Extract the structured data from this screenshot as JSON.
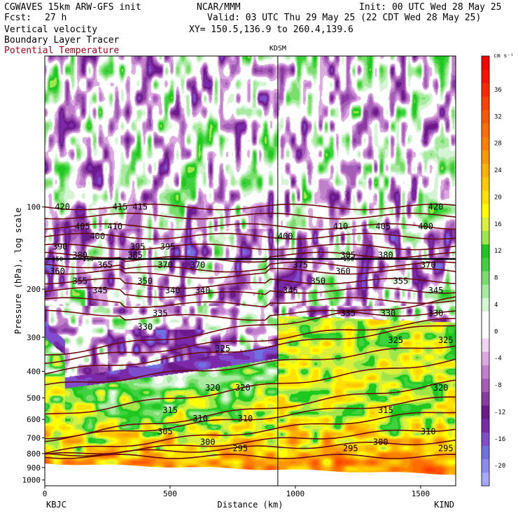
{
  "header": {
    "model": "CGWAVES 15km ARW-GFS init",
    "fcst_label": "Fcst:",
    "fcst_value": "27 h",
    "org": "NCAR/MMM",
    "init": "Init: 00 UTC Wed 28 May 25",
    "valid": "Valid: 03 UTC Thu 29 May 25 (22 CDT Wed 28 May 25)",
    "xy": "XY= 150.5,136.9 to 260.4,139.6",
    "fields": [
      "Vertical velocity",
      "Boundary Layer Tracer",
      "Potential Temperature"
    ]
  },
  "colors": {
    "theta_contour": "#6b0a0a",
    "field_label_theta": "#a0001a",
    "ground": "#ffffff"
  },
  "chart_data": {
    "type": "heatmap",
    "title": "",
    "xlabel": "Distance (km)",
    "ylabel": "Pressure (hPa), log scale",
    "x_ticks": [
      0,
      500,
      1000,
      1500
    ],
    "xlim": [
      0,
      1640
    ],
    "y_scale": "log",
    "y_ticks": [
      100,
      200,
      300,
      400,
      500,
      600,
      700,
      800,
      900,
      1000
    ],
    "ylim": [
      1050,
      28
    ],
    "left_station": "KBJC",
    "right_station": "KIND",
    "marker_station": {
      "label": "KDSM",
      "x": 930
    },
    "colorbar": {
      "unit": "cm s⁻¹",
      "levels": [
        -22,
        -20,
        -18,
        -16,
        -14,
        -12,
        -10,
        -8,
        -6,
        -4,
        -2,
        0,
        2,
        4,
        6,
        8,
        10,
        12,
        14,
        16,
        18,
        20,
        22,
        24,
        26,
        28,
        30,
        32,
        34,
        36,
        38,
        40
      ],
      "labels": [
        -20,
        -16,
        -12,
        -8,
        -4,
        0,
        4,
        8,
        12,
        16,
        20,
        24,
        28,
        32,
        36
      ],
      "colors": [
        "#a8a8ff",
        "#8a8af0",
        "#7070e0",
        "#7e4ccc",
        "#7a2aa8",
        "#6a1a8a",
        "#8a3aa0",
        "#a45cb8",
        "#c080cc",
        "#dca8e0",
        "#f0d4f0",
        "#ffffff",
        "#ffffff",
        "#d4f4d4",
        "#a8eaa0",
        "#7ade6a",
        "#3ed23e",
        "#1ec81e",
        "#9ee64a",
        "#d8f03a",
        "#ffff00",
        "#ffe000",
        "#ffc800",
        "#ffb000",
        "#ff9800",
        "#ff8000",
        "#ff6c00",
        "#ff5800",
        "#ff4000",
        "#ff2800",
        "#ff1000",
        "#ff0000"
      ]
    },
    "theta_label_rows": [
      {
        "p": 100,
        "labels": [
          [
            "420",
            40
          ],
          [
            "415",
            270
          ],
          [
            "415",
            350
          ],
          [
            "420",
            1530
          ]
        ]
      },
      {
        "p": 118,
        "labels": [
          [
            "405",
            120
          ],
          [
            "410",
            250
          ],
          [
            "410",
            1150
          ],
          [
            "405",
            1320
          ],
          [
            "400",
            1490
          ]
        ]
      },
      {
        "p": 128,
        "labels": [
          [
            "400",
            180
          ],
          [
            "400",
            930
          ]
        ]
      },
      {
        "p": 140,
        "labels": [
          [
            "390",
            30
          ],
          [
            "395",
            340
          ],
          [
            "395",
            460
          ]
        ]
      },
      {
        "p": 150,
        "labels": [
          [
            "380",
            110
          ],
          [
            "385",
            330
          ],
          [
            "385",
            1180
          ],
          [
            "380",
            1330
          ]
        ]
      },
      {
        "p": 163,
        "labels": [
          [
            "365",
            210
          ],
          [
            "370",
            450
          ],
          [
            "370",
            580
          ],
          [
            "375",
            990
          ],
          [
            "370",
            1500
          ]
        ]
      },
      {
        "p": 172,
        "labels": [
          [
            "360",
            20
          ],
          [
            "360",
            1160
          ]
        ]
      },
      {
        "p": 187,
        "labels": [
          [
            "355",
            110
          ],
          [
            "350",
            370
          ],
          [
            "350",
            1060
          ],
          [
            "355",
            1390
          ]
        ]
      },
      {
        "p": 202,
        "labels": [
          [
            "345",
            190
          ],
          [
            "340",
            480
          ],
          [
            "340",
            600
          ],
          [
            "345",
            950
          ],
          [
            "345",
            1530
          ]
        ]
      },
      {
        "p": 245,
        "labels": [
          [
            "335",
            430
          ],
          [
            "335",
            1180
          ],
          [
            "330",
            1340
          ],
          [
            "330",
            1530
          ]
        ]
      },
      {
        "p": 275,
        "labels": [
          [
            "330",
            370
          ]
        ]
      },
      {
        "p": 308,
        "labels": [
          [
            "325",
            1370
          ],
          [
            "325",
            1570
          ]
        ]
      },
      {
        "p": 330,
        "labels": [
          [
            "325",
            680
          ]
        ]
      },
      {
        "p": 460,
        "labels": [
          [
            "320",
            640
          ],
          [
            "320",
            760
          ],
          [
            "320",
            1550
          ]
        ]
      },
      {
        "p": 555,
        "labels": [
          [
            "315",
            470
          ],
          [
            "315",
            1330
          ]
        ]
      },
      {
        "p": 595,
        "labels": [
          [
            "310",
            590
          ],
          [
            "310",
            770
          ]
        ]
      },
      {
        "p": 665,
        "labels": [
          [
            "305",
            450
          ],
          [
            "310",
            1500
          ]
        ]
      },
      {
        "p": 725,
        "labels": [
          [
            "300",
            620
          ],
          [
            "300",
            1310
          ]
        ]
      },
      {
        "p": 765,
        "labels": [
          [
            "295",
            750
          ],
          [
            "295",
            1190
          ],
          [
            "295",
            1570
          ]
        ]
      }
    ],
    "tracer_marker_label": "150",
    "legend": "right colorbar",
    "grid": false
  }
}
